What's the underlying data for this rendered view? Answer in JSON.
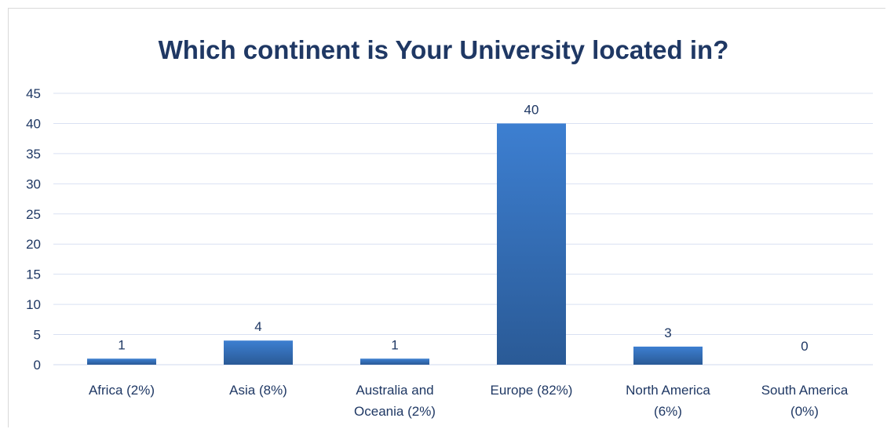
{
  "chart_data": {
    "type": "bar",
    "title": "Which continent is Your University located in?",
    "categories": [
      [
        "Africa (2%)"
      ],
      [
        "Asia (8%)"
      ],
      [
        "Australia and",
        "Oceania (2%)"
      ],
      [
        "Europe (82%)"
      ],
      [
        "North America",
        "(6%)"
      ],
      [
        "South America",
        "(0%)"
      ]
    ],
    "values": [
      1,
      4,
      1,
      40,
      3,
      0
    ],
    "ylim": [
      0,
      45
    ],
    "yticks": [
      0,
      5,
      10,
      15,
      20,
      25,
      30,
      35,
      40,
      45
    ],
    "grid": true,
    "legend": "none",
    "colors": {
      "bar_top": "#3d7fd1",
      "bar_bottom": "#2a5a96",
      "text": "#1f3864",
      "grid": "#d9e1f2"
    }
  }
}
